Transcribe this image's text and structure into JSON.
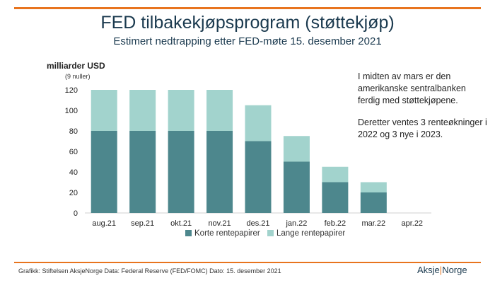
{
  "title": "FED tilbakekjøpsprogram (støttekjøp)",
  "subtitle": "Estimert nedtrapping etter FED-møte 15. desember 2021",
  "y_unit": "milliarder USD",
  "y_unit_sub": "(9 nuller)",
  "note_1": "I midten av mars er den amerikanske sentralbanken ferdig med støttekjøpene.",
  "note_2": "Deretter ventes 3 renteøkninger i 2022 og 3 nye i 2023.",
  "footer": "Grafikk: Stiftelsen AksjeNorge   Data: Federal Reserve (FED/FOMC) Dato: 15. desember 2021",
  "logo": {
    "left": "Aksje",
    "sep": "|",
    "right": "Norge"
  },
  "colors": {
    "accent": "#e8741e",
    "dark": "#4d878d",
    "light": "#a2d3cd",
    "title": "#1b3a4f"
  },
  "chart_data": {
    "type": "bar",
    "stacked": true,
    "categories": [
      "aug.21",
      "sep.21",
      "okt.21",
      "nov.21",
      "des.21",
      "jan.22",
      "feb.22",
      "mar.22",
      "apr.22"
    ],
    "series": [
      {
        "name": "Korte rentepapirer",
        "values": [
          80,
          80,
          80,
          80,
          70,
          50,
          30,
          20,
          0
        ]
      },
      {
        "name": "Lange rentepapirer",
        "values": [
          40,
          40,
          40,
          40,
          35,
          25,
          15,
          10,
          0
        ]
      }
    ],
    "ylim": [
      0,
      120
    ],
    "yticks": [
      0,
      20,
      40,
      60,
      80,
      100,
      120
    ],
    "grid": false,
    "legend": "bottom"
  }
}
